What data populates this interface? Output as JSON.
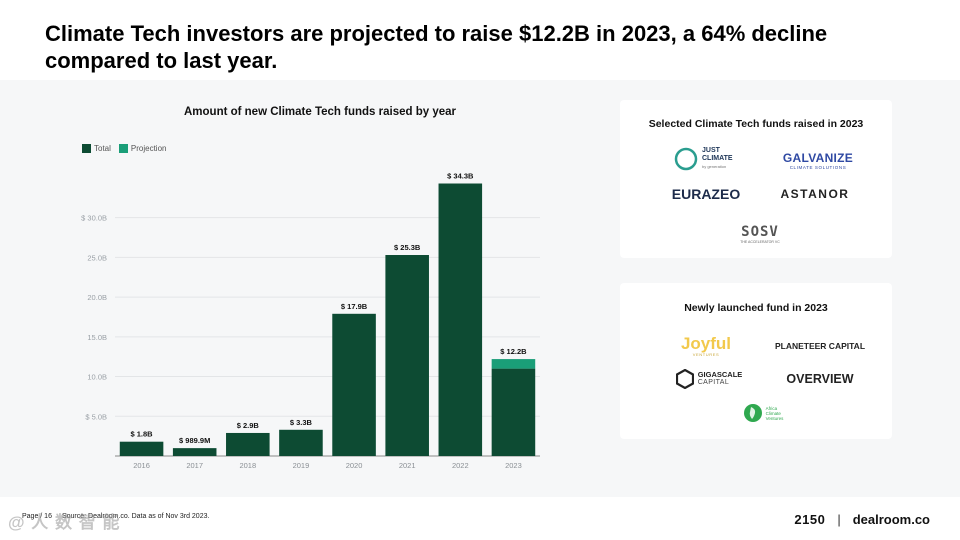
{
  "headline": "Climate Tech investors are projected to raise $12.2B in 2023, a 64% decline compared to last year.",
  "colors": {
    "total": "#0d4b33",
    "projection": "#1a9e78",
    "grid": "#e3e5e7",
    "panel": "#f6f7f8"
  },
  "chart_data": {
    "type": "bar",
    "title": "Amount of new Climate Tech funds raised by year",
    "categories": [
      "2016",
      "2017",
      "2018",
      "2019",
      "2020",
      "2021",
      "2022",
      "2023"
    ],
    "series": [
      {
        "name": "Total",
        "values": [
          1.8,
          0.9899,
          2.9,
          3.3,
          17.9,
          25.3,
          34.3,
          11.0
        ]
      },
      {
        "name": "Projection",
        "values": [
          0,
          0,
          0,
          0,
          0,
          0,
          0,
          1.2
        ]
      }
    ],
    "data_labels": [
      "$ 1.8B",
      "$ 989.9M",
      "$ 2.9B",
      "$ 3.3B",
      "$ 17.9B",
      "$ 25.3B",
      "$ 34.3B",
      "$ 12.2B"
    ],
    "yticks": [
      5,
      10,
      15,
      20,
      25,
      30
    ],
    "ytick_labels": [
      "$ 5.0B",
      "10.0B",
      "15.0B",
      "20.0B",
      "25.0B",
      "$ 30.0B"
    ],
    "ylim": [
      0,
      36
    ],
    "xlabel": "",
    "ylabel": "",
    "legend": [
      "Total",
      "Projection"
    ],
    "legend_position": "top-left",
    "grid": true
  },
  "cards": {
    "selected": {
      "title": "Selected Climate Tech funds raised in 2023",
      "logos": {
        "justclimate": {
          "name": "JUST",
          "name2": "CLIMATE",
          "tag": "by generation"
        },
        "galvanize": {
          "name": "GALVANIZE",
          "tag": "CLIMATE SOLUTIONS"
        },
        "eurazeo": "EURAZEO",
        "astanor": "ASTANOR",
        "sosv": {
          "name": "SOSV",
          "tag": "THE ACCELERATOR VC"
        }
      }
    },
    "newly": {
      "title": "Newly launched fund in 2023",
      "logos": {
        "joyful": {
          "name": "Joyful",
          "tag": "VENTURES"
        },
        "planeteer": "PLANETEER CAPITAL",
        "gigascale": {
          "name": "GIGASCALE",
          "tag": "CAPITAL"
        },
        "overview": "OVERVIEW",
        "africa": {
          "line1": "Africa",
          "line2": "Climate",
          "line3": "Ventures"
        }
      }
    }
  },
  "footer": {
    "page": "Page / 16",
    "source": "Source: Dealroom.co.  Data as of Nov 3rd 2023.",
    "brand_left": "2150",
    "brand_sep": "|",
    "brand_right": "dealroom.co",
    "watermark": "@ 人 数 智 能"
  }
}
